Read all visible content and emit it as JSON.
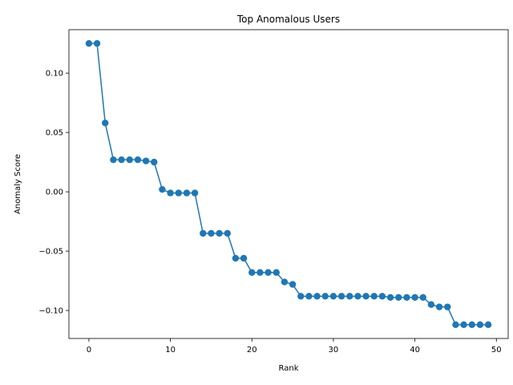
{
  "chart_data": {
    "type": "line",
    "title": "Top Anomalous Users",
    "xlabel": "Rank",
    "ylabel": "Anomaly Score",
    "xlim": [
      -2.45,
      51.45
    ],
    "ylim": [
      -0.1236,
      0.1366
    ],
    "xticks": [
      0,
      10,
      20,
      30,
      40,
      50
    ],
    "xtick_labels": [
      "0",
      "10",
      "20",
      "30",
      "40",
      "50"
    ],
    "yticks": [
      -0.1,
      -0.05,
      0.0,
      0.05,
      0.1
    ],
    "ytick_labels": [
      "−0.10",
      "−0.05",
      "0.00",
      "0.05",
      "0.10"
    ],
    "grid": false,
    "legend": "none",
    "color": "#1f77b4",
    "marker": "circle",
    "series": [
      {
        "x": [
          0,
          1,
          2,
          3,
          4,
          5,
          6,
          7,
          8,
          9,
          10,
          11,
          12,
          13,
          14,
          15,
          16,
          17,
          18,
          19,
          20,
          21,
          22,
          23,
          24,
          25,
          26,
          27,
          28,
          29,
          30,
          31,
          32,
          33,
          34,
          35,
          36,
          37,
          38,
          39,
          40,
          41,
          42,
          43,
          44,
          45,
          46,
          47,
          48,
          49
        ],
        "values": [
          0.125,
          0.125,
          0.058,
          0.027,
          0.027,
          0.027,
          0.027,
          0.026,
          0.025,
          0.002,
          -0.001,
          -0.001,
          -0.001,
          -0.001,
          -0.035,
          -0.035,
          -0.035,
          -0.035,
          -0.056,
          -0.056,
          -0.068,
          -0.068,
          -0.068,
          -0.068,
          -0.076,
          -0.078,
          -0.088,
          -0.088,
          -0.088,
          -0.088,
          -0.088,
          -0.088,
          -0.088,
          -0.088,
          -0.088,
          -0.088,
          -0.088,
          -0.089,
          -0.089,
          -0.089,
          -0.089,
          -0.089,
          -0.095,
          -0.097,
          -0.097,
          -0.112,
          -0.112,
          -0.112,
          -0.112,
          -0.112
        ]
      }
    ]
  }
}
